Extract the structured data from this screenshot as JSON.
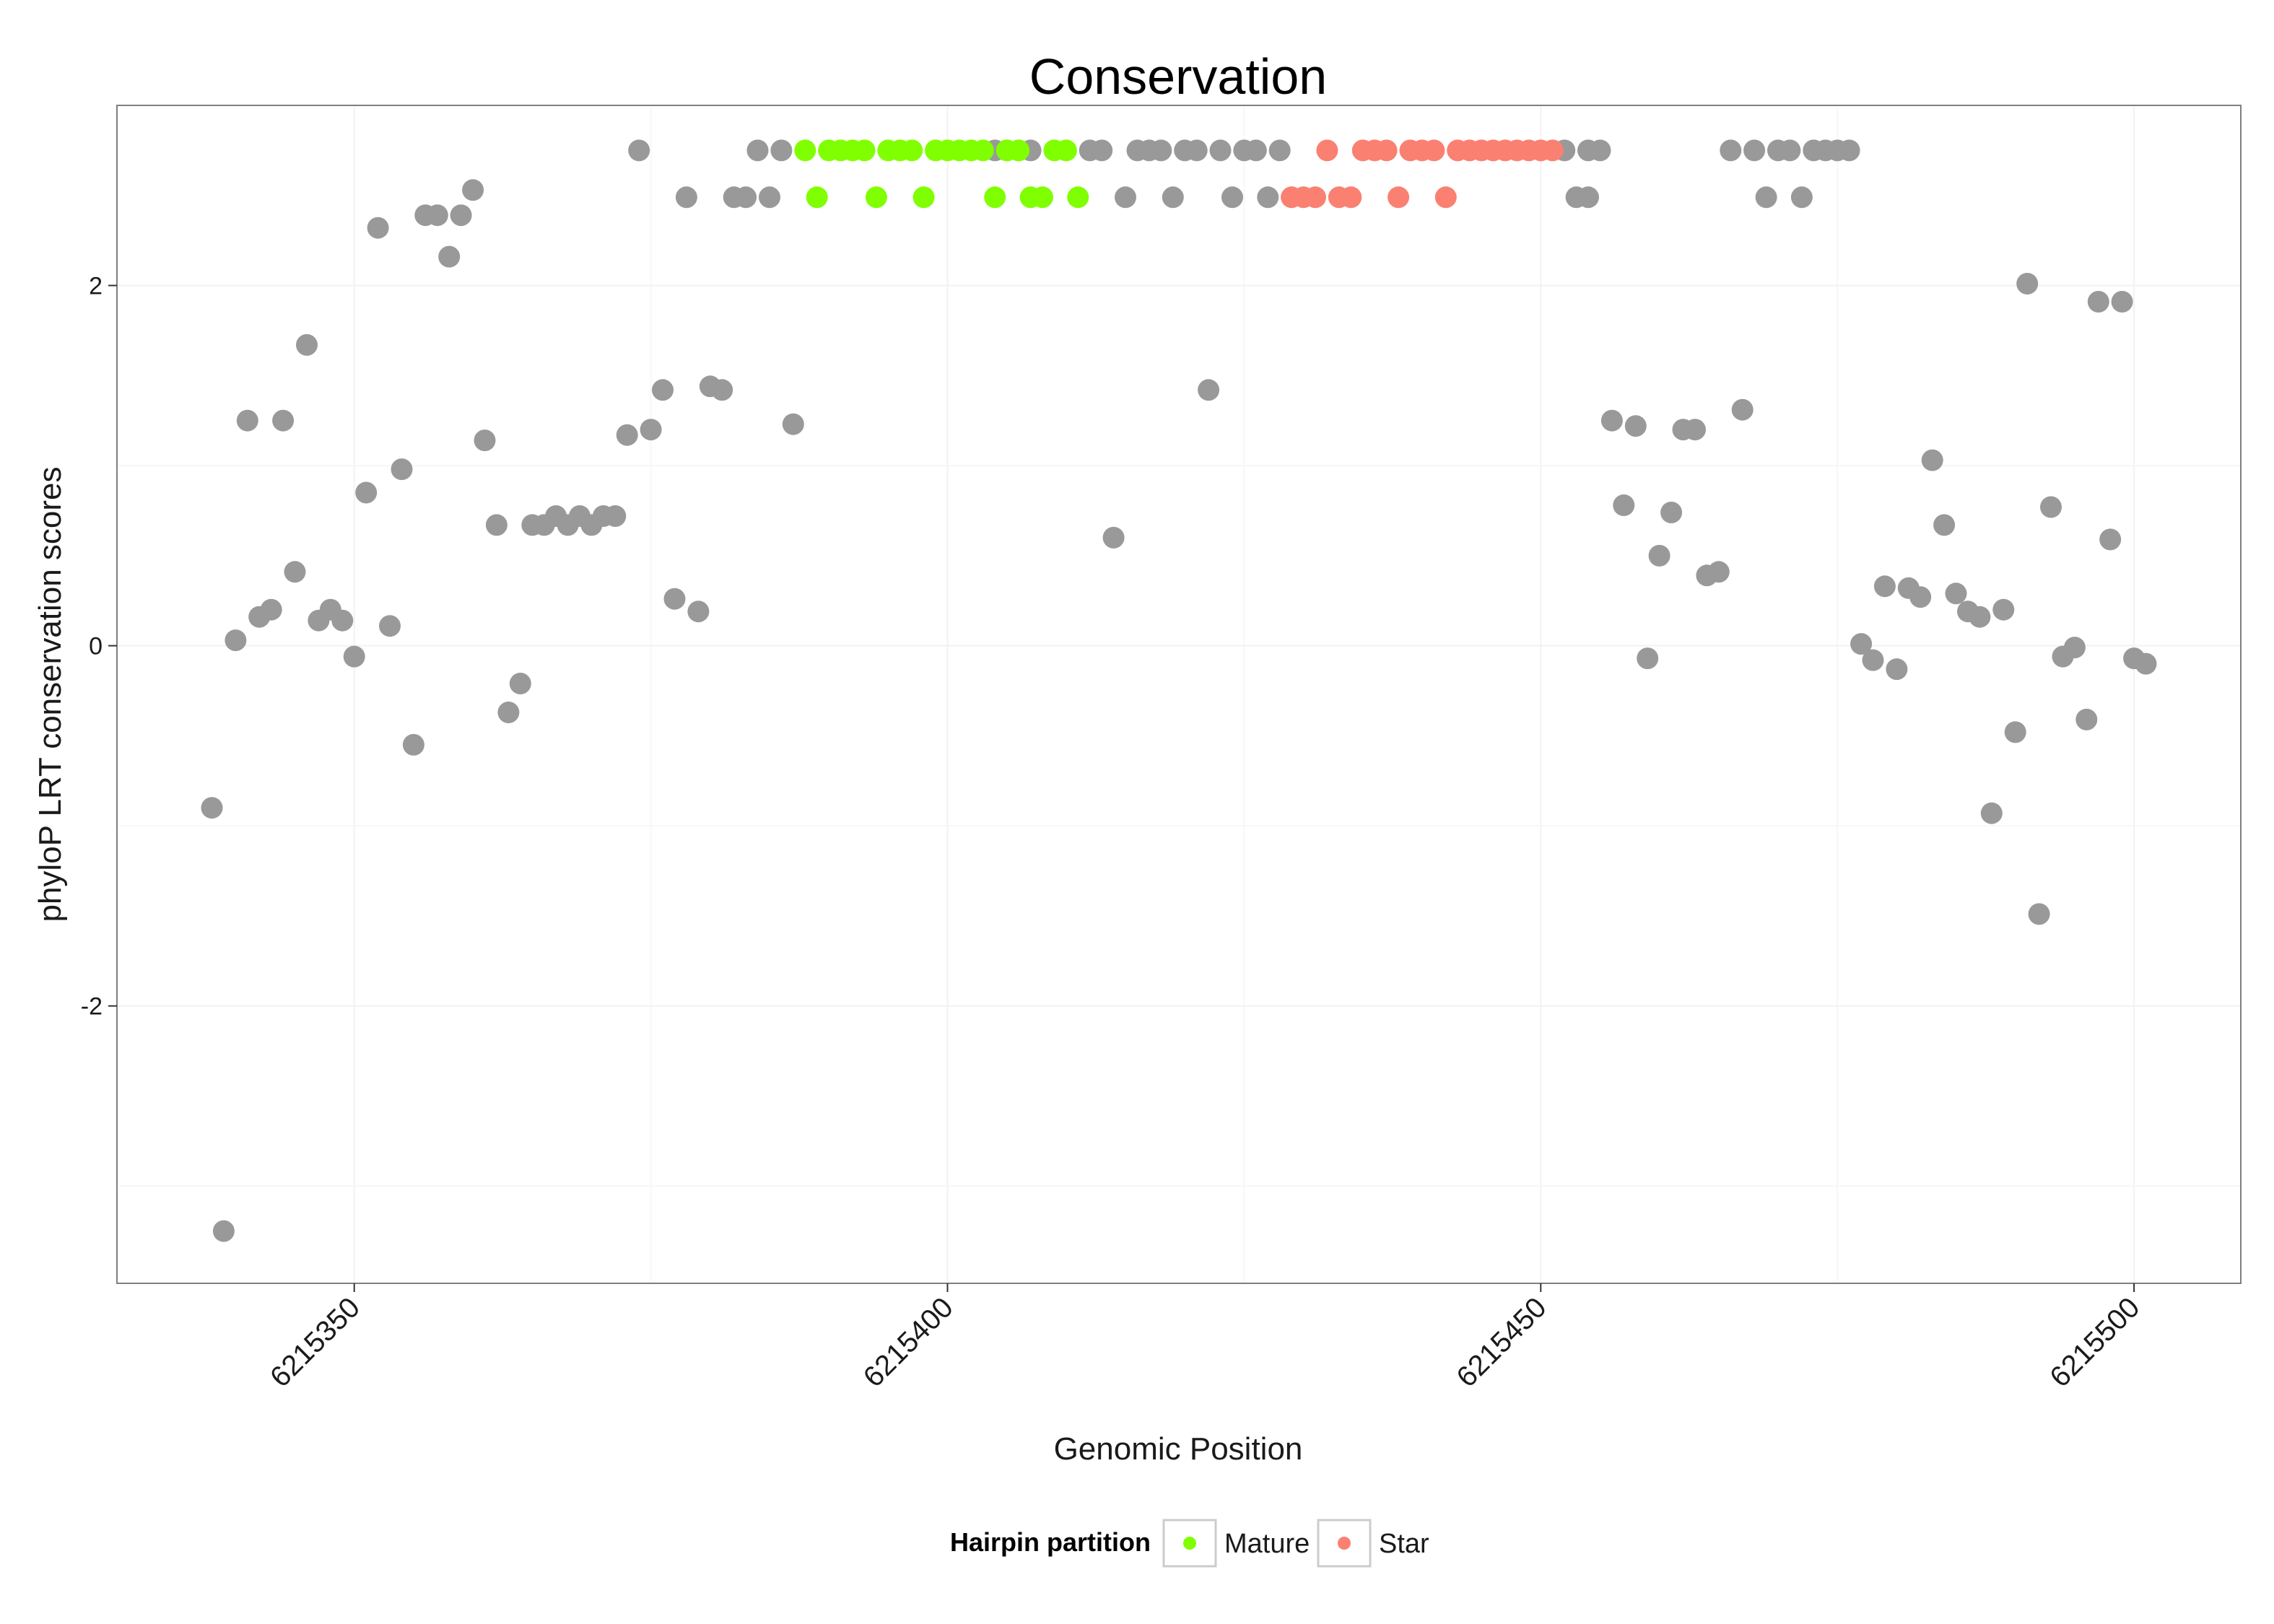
{
  "chart_data": {
    "type": "scatter",
    "title": "Conservation",
    "xlabel": "Genomic Position",
    "ylabel": "phyloP LRT conservation scores",
    "xlim": [
      6215330,
      6215509
    ],
    "ylim": [
      -3.54,
      3.0
    ],
    "x_ticks": [
      6215350,
      6215400,
      6215450,
      6215500
    ],
    "x_tick_labels": [
      "6215350",
      "6215400",
      "6215450",
      "6215500"
    ],
    "y_ticks": [
      -2,
      0,
      2
    ],
    "y_tick_labels": [
      "-2",
      "0",
      "2"
    ],
    "grid": true,
    "legend": {
      "title": "Hairpin partition",
      "position": "bottom",
      "entries": [
        {
          "label": "Mature",
          "color": "#7fff00"
        },
        {
          "label": "Star",
          "color": "#fa8072"
        }
      ]
    },
    "colors": {
      "other": "#999999",
      "Mature": "#7fff00",
      "Star": "#fa8072"
    },
    "series": [
      {
        "name": "Other",
        "points": [
          [
            6215338,
            -0.9
          ],
          [
            6215339,
            -3.25
          ],
          [
            6215340,
            0.03
          ],
          [
            6215341,
            1.25
          ],
          [
            6215342,
            0.16
          ],
          [
            6215343,
            0.2
          ],
          [
            6215344,
            1.25
          ],
          [
            6215345,
            0.41
          ],
          [
            6215346,
            1.67
          ],
          [
            6215347,
            0.14
          ],
          [
            6215348,
            0.2
          ],
          [
            6215349,
            0.14
          ],
          [
            6215350,
            -0.06
          ],
          [
            6215351,
            0.85
          ],
          [
            6215352,
            2.32
          ],
          [
            6215353,
            0.11
          ],
          [
            6215354,
            0.98
          ],
          [
            6215355,
            -0.55
          ],
          [
            6215356,
            2.39
          ],
          [
            6215357,
            2.39
          ],
          [
            6215358,
            2.16
          ],
          [
            6215359,
            2.39
          ],
          [
            6215360,
            2.53
          ],
          [
            6215361,
            1.14
          ],
          [
            6215362,
            0.67
          ],
          [
            6215363,
            -0.37
          ],
          [
            6215364,
            -0.21
          ],
          [
            6215365,
            0.67
          ],
          [
            6215366,
            0.67
          ],
          [
            6215367,
            0.72
          ],
          [
            6215368,
            0.67
          ],
          [
            6215369,
            0.72
          ],
          [
            6215370,
            0.67
          ],
          [
            6215371,
            0.72
          ],
          [
            6215372,
            0.72
          ],
          [
            6215373,
            1.17
          ],
          [
            6215374,
            2.75
          ],
          [
            6215375,
            1.2
          ],
          [
            6215376,
            1.42
          ],
          [
            6215377,
            0.26
          ],
          [
            6215378,
            2.49
          ],
          [
            6215379,
            0.19
          ],
          [
            6215380,
            1.44
          ],
          [
            6215381,
            1.42
          ],
          [
            6215382,
            2.49
          ],
          [
            6215383,
            2.49
          ],
          [
            6215384,
            2.75
          ],
          [
            6215385,
            2.49
          ],
          [
            6215386,
            2.75
          ],
          [
            6215387,
            1.23
          ],
          [
            6215404,
            2.75
          ],
          [
            6215405,
            2.75
          ],
          [
            6215406,
            2.75
          ],
          [
            6215407,
            2.75
          ],
          [
            6215412,
            2.75
          ],
          [
            6215413,
            2.75
          ],
          [
            6215414,
            0.6
          ],
          [
            6215415,
            2.49
          ],
          [
            6215416,
            2.75
          ],
          [
            6215417,
            2.75
          ],
          [
            6215418,
            2.75
          ],
          [
            6215419,
            2.49
          ],
          [
            6215420,
            2.75
          ],
          [
            6215421,
            2.75
          ],
          [
            6215422,
            1.42
          ],
          [
            6215423,
            2.75
          ],
          [
            6215424,
            2.49
          ],
          [
            6215425,
            2.75
          ],
          [
            6215426,
            2.75
          ],
          [
            6215427,
            2.49
          ],
          [
            6215428,
            2.75
          ],
          [
            6215452,
            2.75
          ],
          [
            6215453,
            2.49
          ],
          [
            6215454,
            2.75
          ],
          [
            6215454,
            2.49
          ],
          [
            6215455,
            2.75
          ],
          [
            6215456,
            1.25
          ],
          [
            6215457,
            0.78
          ],
          [
            6215458,
            1.22
          ],
          [
            6215459,
            -0.07
          ],
          [
            6215460,
            0.5
          ],
          [
            6215461,
            0.74
          ],
          [
            6215462,
            1.2
          ],
          [
            6215463,
            1.2
          ],
          [
            6215464,
            0.39
          ],
          [
            6215465,
            0.41
          ],
          [
            6215466,
            2.75
          ],
          [
            6215467,
            1.31
          ],
          [
            6215468,
            2.75
          ],
          [
            6215469,
            2.49
          ],
          [
            6215470,
            2.75
          ],
          [
            6215471,
            2.75
          ],
          [
            6215472,
            2.49
          ],
          [
            6215473,
            2.75
          ],
          [
            6215474,
            2.75
          ],
          [
            6215475,
            2.75
          ],
          [
            6215476,
            2.75
          ],
          [
            6215477,
            0.01
          ],
          [
            6215478,
            -0.08
          ],
          [
            6215479,
            0.33
          ],
          [
            6215480,
            -0.13
          ],
          [
            6215481,
            0.32
          ],
          [
            6215482,
            0.27
          ],
          [
            6215483,
            1.03
          ],
          [
            6215484,
            0.67
          ],
          [
            6215485,
            0.29
          ],
          [
            6215486,
            0.19
          ],
          [
            6215487,
            0.16
          ],
          [
            6215488,
            -0.93
          ],
          [
            6215489,
            0.2
          ],
          [
            6215490,
            -0.48
          ],
          [
            6215491,
            2.01
          ],
          [
            6215492,
            -1.49
          ],
          [
            6215493,
            0.77
          ],
          [
            6215494,
            -0.06
          ],
          [
            6215495,
            -0.01
          ],
          [
            6215496,
            -0.41
          ],
          [
            6215497,
            1.91
          ],
          [
            6215498,
            0.59
          ],
          [
            6215499,
            1.91
          ],
          [
            6215500,
            -0.07
          ],
          [
            6215501,
            -0.1
          ]
        ]
      },
      {
        "name": "Mature",
        "points": [
          [
            6215388,
            2.75
          ],
          [
            6215389,
            2.49
          ],
          [
            6215390,
            2.75
          ],
          [
            6215391,
            2.75
          ],
          [
            6215392,
            2.75
          ],
          [
            6215393,
            2.75
          ],
          [
            6215394,
            2.49
          ],
          [
            6215395,
            2.75
          ],
          [
            6215396,
            2.75
          ],
          [
            6215397,
            2.75
          ],
          [
            6215398,
            2.49
          ],
          [
            6215399,
            2.75
          ],
          [
            6215400,
            2.75
          ],
          [
            6215401,
            2.75
          ],
          [
            6215402,
            2.75
          ],
          [
            6215403,
            2.75
          ],
          [
            6215404,
            2.49
          ],
          [
            6215405,
            2.75
          ],
          [
            6215406,
            2.75
          ],
          [
            6215407,
            2.49
          ],
          [
            6215408,
            2.49
          ],
          [
            6215409,
            2.75
          ],
          [
            6215410,
            2.75
          ],
          [
            6215411,
            2.49
          ]
        ]
      },
      {
        "name": "Star",
        "points": [
          [
            6215429,
            2.49
          ],
          [
            6215430,
            2.49
          ],
          [
            6215431,
            2.49
          ],
          [
            6215432,
            2.75
          ],
          [
            6215433,
            2.49
          ],
          [
            6215434,
            2.49
          ],
          [
            6215435,
            2.75
          ],
          [
            6215436,
            2.75
          ],
          [
            6215437,
            2.75
          ],
          [
            6215438,
            2.49
          ],
          [
            6215439,
            2.75
          ],
          [
            6215440,
            2.75
          ],
          [
            6215441,
            2.75
          ],
          [
            6215442,
            2.49
          ],
          [
            6215443,
            2.75
          ],
          [
            6215444,
            2.75
          ],
          [
            6215445,
            2.75
          ],
          [
            6215446,
            2.75
          ],
          [
            6215447,
            2.75
          ],
          [
            6215448,
            2.75
          ],
          [
            6215449,
            2.75
          ],
          [
            6215450,
            2.75
          ],
          [
            6215451,
            2.75
          ]
        ]
      }
    ]
  }
}
